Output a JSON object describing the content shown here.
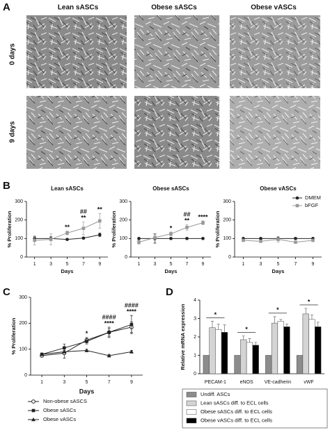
{
  "panel_labels": [
    "A",
    "B",
    "C",
    "D"
  ],
  "panel_a": {
    "columns": [
      "Lean sASCs",
      "Obese sASCs",
      "Obese vASCs"
    ],
    "rows": [
      "0 days",
      "9 days"
    ]
  },
  "chart_data": [
    {
      "type": "line",
      "title": "Lean sASCs",
      "x_label": "Days",
      "y_label": "% Proliferation",
      "x": [
        1,
        3,
        5,
        7,
        9
      ],
      "xlim": [
        0,
        10
      ],
      "xticks": [
        1,
        3,
        5,
        7,
        9
      ],
      "ylim": [
        0,
        300
      ],
      "yticks": [
        0,
        100,
        200,
        300
      ],
      "series": [
        {
          "color": "#222222",
          "marker": "circle",
          "values": [
            100,
            100,
            95,
            102,
            120
          ],
          "errors": [
            10,
            10,
            5,
            5,
            10
          ]
        },
        {
          "color": "#999999",
          "marker": "square",
          "values": [
            90,
            95,
            130,
            155,
            195
          ],
          "errors": [
            25,
            30,
            10,
            35,
            40
          ]
        }
      ],
      "annotations": [
        null,
        null,
        [
          "**"
        ],
        [
          "##",
          "**"
        ],
        [
          "**"
        ]
      ]
    },
    {
      "type": "line",
      "title": "Obese sASCs",
      "x_label": "Days",
      "y_label": "% Proliferation",
      "x": [
        1,
        3,
        5,
        7,
        9
      ],
      "xlim": [
        0,
        10
      ],
      "xticks": [
        1,
        3,
        5,
        7,
        9
      ],
      "ylim": [
        0,
        300
      ],
      "yticks": [
        0,
        100,
        200,
        300
      ],
      "series": [
        {
          "color": "#222222",
          "marker": "circle",
          "values": [
            100,
            100,
            100,
            100,
            100
          ],
          "errors": [
            5,
            25,
            5,
            5,
            5
          ]
        },
        {
          "color": "#999999",
          "marker": "square",
          "values": [
            80,
            105,
            125,
            160,
            185
          ],
          "errors": [
            10,
            15,
            10,
            15,
            10
          ]
        }
      ],
      "annotations": [
        null,
        null,
        [
          "*"
        ],
        [
          "##",
          "**"
        ],
        [
          "****"
        ]
      ]
    },
    {
      "type": "line",
      "title": "Obese vASCs",
      "x_label": "Days",
      "y_label": "% Proliferation",
      "x": [
        1,
        3,
        5,
        7,
        9
      ],
      "xlim": [
        0,
        10
      ],
      "xticks": [
        1,
        3,
        5,
        7,
        9
      ],
      "ylim": [
        0,
        300
      ],
      "yticks": [
        0,
        100,
        200,
        300
      ],
      "legend": "upper right",
      "series": [
        {
          "name": "DMEM",
          "color": "#222222",
          "marker": "circle",
          "values": [
            100,
            100,
            100,
            100,
            100
          ],
          "errors": [
            5,
            5,
            10,
            5,
            5
          ]
        },
        {
          "name": "bFGF",
          "color": "#999999",
          "marker": "square",
          "values": [
            90,
            85,
            95,
            80,
            90
          ],
          "errors": [
            5,
            5,
            15,
            5,
            5
          ]
        }
      ]
    },
    {
      "type": "line",
      "x_label": "Days",
      "y_label": "% Proliferation",
      "x": [
        1,
        3,
        5,
        7,
        9
      ],
      "xlim": [
        0,
        10
      ],
      "xticks": [
        1,
        3,
        5,
        7,
        9
      ],
      "ylim": [
        0,
        300
      ],
      "yticks": [
        0,
        100,
        200,
        300
      ],
      "legend": "below",
      "series": [
        {
          "name": "Non-obese sASCS",
          "color": "#222222",
          "marker": "circle-open",
          "values": [
            75,
            85,
            135,
            165,
            185
          ],
          "errors": [
            5,
            20,
            10,
            15,
            20
          ]
        },
        {
          "name": "Obese sASCs",
          "color": "#222222",
          "marker": "square",
          "values": [
            80,
            105,
            130,
            165,
            195
          ],
          "errors": [
            5,
            15,
            10,
            20,
            35
          ]
        },
        {
          "name": "Obese vASCs",
          "color": "#222222",
          "marker": "triangle",
          "values": [
            80,
            90,
            95,
            75,
            90
          ],
          "errors": [
            5,
            5,
            5,
            5,
            5
          ]
        }
      ],
      "annotations": [
        null,
        null,
        [
          "*"
        ],
        [
          "####",
          "****"
        ],
        [
          "####",
          "****"
        ]
      ]
    },
    {
      "type": "bar",
      "y_label": "Relative mRNA expression",
      "categories": [
        "PECAM-1",
        "eNOS",
        "VE-cadherin",
        "vWF"
      ],
      "ylim": [
        0,
        4
      ],
      "yticks": [
        0,
        1,
        2,
        3,
        4
      ],
      "legend": "below",
      "series": [
        {
          "name": "Undiff. ASCs",
          "color": "#8c8c8c",
          "values": [
            1,
            1,
            1,
            1
          ]
        },
        {
          "name": "Lean sASCs diff. to ECL cells",
          "color": "#d4d4d4",
          "values": [
            2.5,
            1.85,
            2.75,
            3.25
          ],
          "errors": [
            0.35,
            0.2,
            0.35,
            0.3
          ]
        },
        {
          "name": "Obese sASCs diff. to ECL cells",
          "color": "#ffffff",
          "values": [
            2.4,
            1.7,
            2.85,
            2.95
          ],
          "errors": [
            0.3,
            0.2,
            0.1,
            0.25
          ]
        },
        {
          "name": "Obese vASCs diff. to ECL cells",
          "color": "#000000",
          "values": [
            2.25,
            1.55,
            2.55,
            2.55
          ],
          "errors": [
            0.4,
            0.15,
            0.15,
            0.25
          ]
        }
      ],
      "annotations": [
        "*",
        "*",
        "*",
        "*"
      ]
    }
  ]
}
